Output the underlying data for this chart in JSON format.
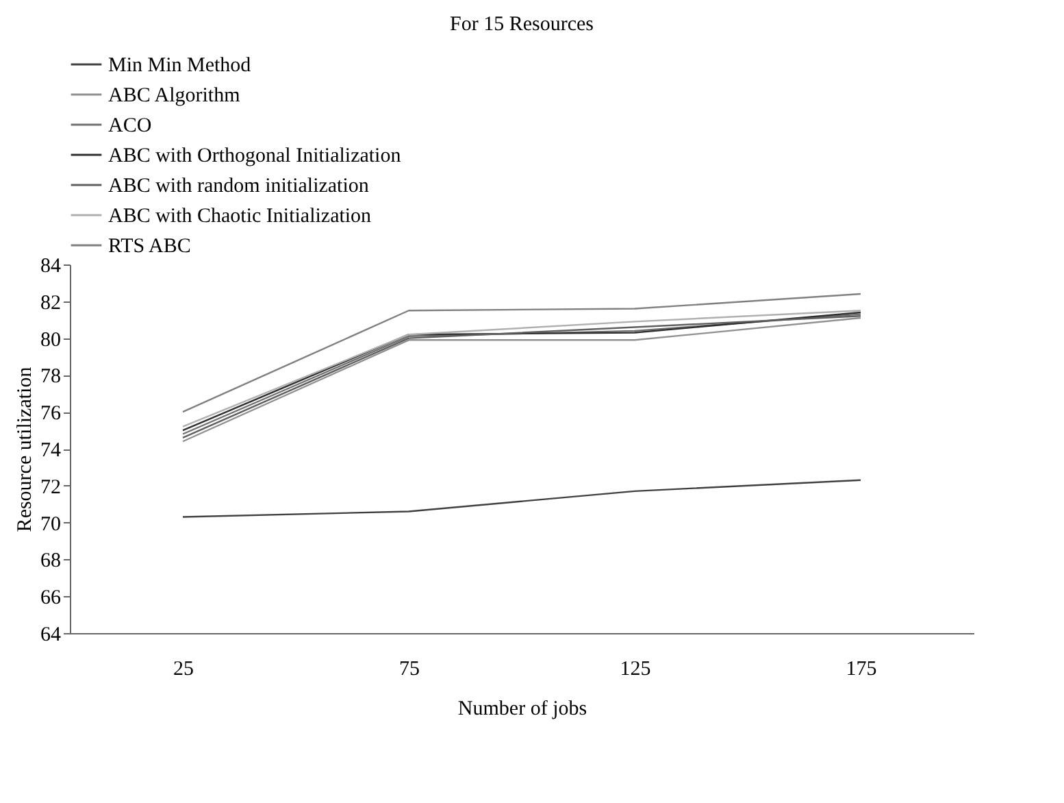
{
  "chart_data": {
    "type": "line",
    "title": "For 15 Resources",
    "xlabel": "Number of jobs",
    "ylabel": "Resource utilization",
    "categories": [
      "25",
      "75",
      "125",
      "175"
    ],
    "series": [
      {
        "name": "Min Min Method",
        "color": "#404040",
        "values": [
          70.3,
          70.6,
          71.7,
          72.3
        ]
      },
      {
        "name": "ABC Algorithm",
        "color": "#909090",
        "values": [
          74.4,
          79.9,
          79.9,
          81.1
        ]
      },
      {
        "name": "ACO",
        "color": "#707070",
        "values": [
          74.8,
          80.1,
          80.4,
          81.3
        ]
      },
      {
        "name": "ABC with Orthogonal Initialization",
        "color": "#303030",
        "values": [
          75.0,
          80.2,
          80.3,
          81.4
        ]
      },
      {
        "name": "ABC with random initialization",
        "color": "#606060",
        "values": [
          74.6,
          80.0,
          80.6,
          81.2
        ]
      },
      {
        "name": "ABC with Chaotic Initialization",
        "color": "#b0b0b0",
        "values": [
          75.2,
          80.2,
          80.9,
          81.5
        ]
      },
      {
        "name": "RTS ABC",
        "color": "#808080",
        "values": [
          76.0,
          81.5,
          81.6,
          82.4
        ]
      }
    ],
    "ylim": [
      64,
      84
    ],
    "yticks": [
      64,
      66,
      68,
      70,
      72,
      74,
      76,
      78,
      80,
      82,
      84
    ],
    "grid": false,
    "legend": "top left"
  }
}
